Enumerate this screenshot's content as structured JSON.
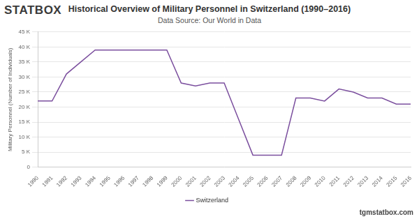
{
  "chart_data": {
    "type": "line",
    "title": "Historical Overview of Military Personnel in Switzerland (1990–2016)",
    "subtitle": "Data Source: Our World in Data",
    "logo": "STATBOX",
    "credit": "tgmstatbox.com",
    "y_label": "Military Personnel (Number of Individuals)",
    "categories": [
      "1990",
      "1991",
      "1992",
      "1993",
      "1994",
      "1995",
      "1996",
      "1997",
      "1998",
      "1999",
      "2000",
      "2001",
      "2002",
      "2003",
      "2004",
      "2005",
      "2006",
      "2007",
      "2008",
      "2009",
      "2010",
      "2011",
      "2012",
      "2013",
      "2014",
      "2015",
      "2016"
    ],
    "series": [
      {
        "name": "Switzerland",
        "color": "#7b4f9e",
        "values": [
          22000,
          22000,
          31000,
          35000,
          39000,
          39000,
          39000,
          39000,
          39000,
          39000,
          28000,
          27000,
          28000,
          28000,
          16000,
          4000,
          4000,
          4000,
          23000,
          23000,
          22000,
          26000,
          25000,
          23000,
          23000,
          21000,
          21000
        ]
      }
    ],
    "ylim": [
      0,
      45000
    ],
    "yticks": [
      0,
      {
        "value": 5000,
        "label": "5 K"
      },
      {
        "value": 10000,
        "label": "10 K"
      },
      {
        "value": 15000,
        "label": "15 K"
      },
      {
        "value": 20000,
        "label": "20 K"
      },
      {
        "value": 25000,
        "label": "25 K"
      },
      {
        "value": 30000,
        "label": "30 K"
      },
      {
        "value": 35000,
        "label": "35 K"
      },
      {
        "value": 40000,
        "label": "40 K"
      },
      {
        "value": 45000,
        "label": "45 K"
      }
    ],
    "grid": true,
    "legend": "bottom"
  }
}
